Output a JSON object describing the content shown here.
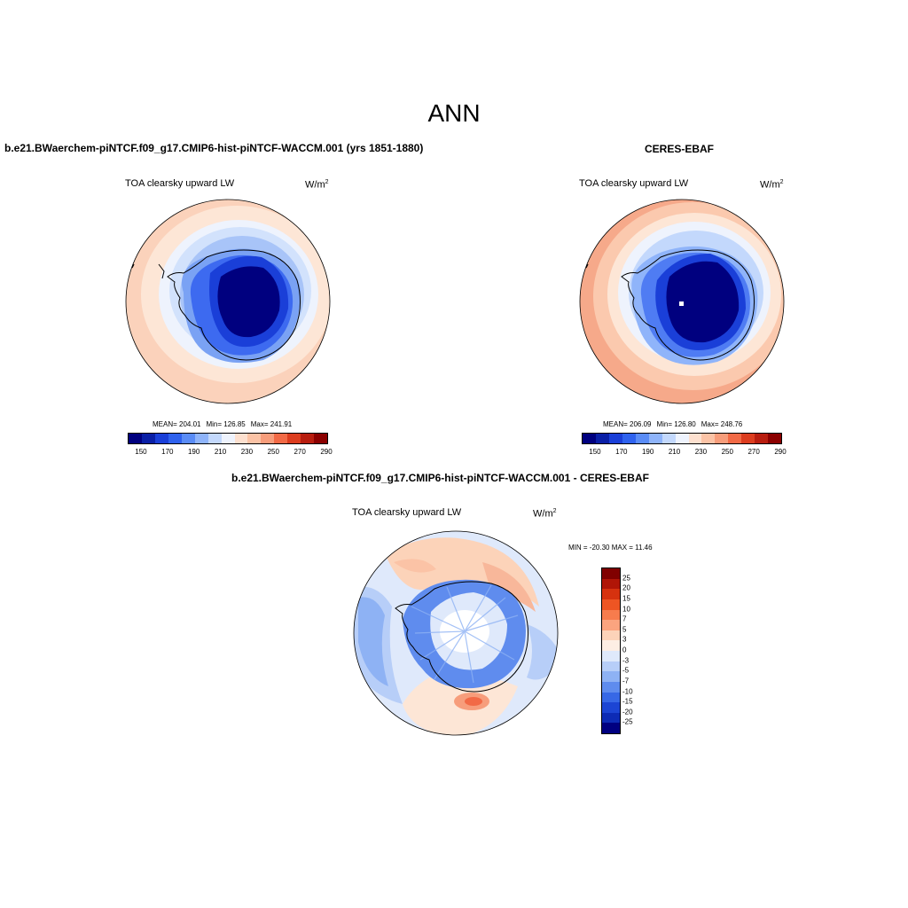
{
  "figure": {
    "title": "ANN"
  },
  "panels": [
    {
      "heading": "b.e21.BWaerchem-piNTCF.f09_g17.CMIP6-hist-piNTCF-WACCM.001 (yrs 1851-1880)",
      "variable": "TOA clearsky upward LW",
      "units": "W/m",
      "units_exp": "2",
      "stats": {
        "mean": "MEAN= 204.01",
        "min": "Min= 126.85",
        "max": "Max= 241.91"
      }
    },
    {
      "heading": "CERES-EBAF",
      "variable": "TOA clearsky upward LW",
      "units": "W/m",
      "units_exp": "2",
      "stats": {
        "mean": "MEAN= 206.09",
        "min": "Min= 126.80",
        "max": "Max= 248.76"
      }
    },
    {
      "heading": "b.e21.BWaerchem-piNTCF.f09_g17.CMIP6-hist-piNTCF-WACCM.001 - CERES-EBAF",
      "variable": "TOA clearsky upward LW",
      "units": "W/m",
      "units_exp": "2",
      "stats": {
        "range": "MIN = -20.30 MAX =  11.46"
      }
    }
  ],
  "colorbar_abs": {
    "ticks": [
      "150",
      "170",
      "190",
      "210",
      "230",
      "250",
      "270",
      "290"
    ],
    "colors": [
      "#00007f",
      "#0a1fa6",
      "#1a3fd8",
      "#2f62ee",
      "#5a8cf6",
      "#8fb4fa",
      "#c3d8fc",
      "#eef3fd",
      "#fde0cf",
      "#fbc3a6",
      "#f79d7b",
      "#f26a46",
      "#dc3d1f",
      "#b81d0f",
      "#8b0000"
    ]
  },
  "colorbar_diff": {
    "ticks": [
      "25",
      "20",
      "15",
      "10",
      "7",
      "5",
      "3",
      "0",
      "-3",
      "-5",
      "-7",
      "-10",
      "-15",
      "-20",
      "-25"
    ],
    "colors": [
      "#800000",
      "#b01507",
      "#d6320f",
      "#ee5523",
      "#f77c4d",
      "#fba47f",
      "#fcd3b9",
      "#fdeee4",
      "#dfe9fb",
      "#b7cef8",
      "#8eb2f4",
      "#5f8cee",
      "#3768e6",
      "#1c45d4",
      "#0d2bb5",
      "#000080"
    ]
  }
}
